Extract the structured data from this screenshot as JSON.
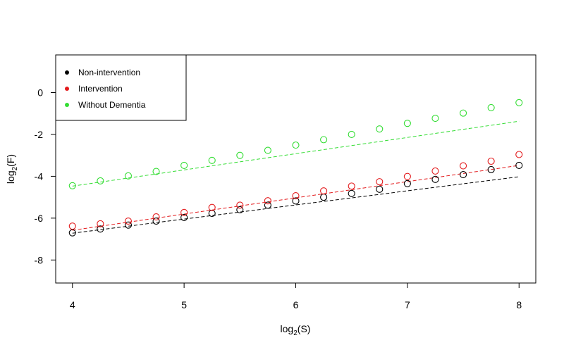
{
  "chart_data": {
    "type": "scatter",
    "xlabel": {
      "base": "log",
      "sub": "2",
      "rest": "(S)"
    },
    "ylabel": {
      "base": "log",
      "sub": "2",
      "rest": "(F)"
    },
    "xlim": [
      3.85,
      8.15
    ],
    "ylim": [
      -9.1,
      1.8
    ],
    "xticks": [
      4,
      5,
      6,
      7,
      8
    ],
    "yticks": [
      -8,
      -6,
      -4,
      -2,
      0
    ],
    "legend_position": "top-left",
    "x": [
      4,
      4.25,
      4.5,
      4.75,
      5,
      5.25,
      5.5,
      5.75,
      6,
      6.25,
      6.5,
      6.75,
      7,
      7.25,
      7.5,
      7.75,
      8
    ],
    "series": [
      {
        "name": "Non-intervention",
        "color": "#000000",
        "values": [
          -6.7,
          -6.52,
          -6.33,
          -6.14,
          -5.97,
          -5.77,
          -5.6,
          -5.38,
          -5.18,
          -5.0,
          -4.82,
          -4.62,
          -4.35,
          -4.15,
          -3.92,
          -3.68,
          -3.48
        ],
        "fit": [
          -6.72,
          2.7
        ]
      },
      {
        "name": "Intervention",
        "color": "#e31a1c",
        "values": [
          -6.38,
          -6.27,
          -6.14,
          -5.94,
          -5.73,
          -5.49,
          -5.38,
          -5.17,
          -4.93,
          -4.7,
          -4.47,
          -4.26,
          -4.01,
          -3.75,
          -3.5,
          -3.28,
          -2.96
        ],
        "fit": [
          -6.58,
          3.1
        ]
      },
      {
        "name": "Without Dementia",
        "color": "#33dd33",
        "values": [
          -4.45,
          -4.22,
          -3.98,
          -3.77,
          -3.48,
          -3.24,
          -3.0,
          -2.76,
          -2.51,
          -2.25,
          -2.0,
          -1.74,
          -1.47,
          -1.23,
          -0.98,
          -0.72,
          -0.48
        ],
        "fit": [
          -4.47,
          3.1
        ]
      }
    ]
  }
}
